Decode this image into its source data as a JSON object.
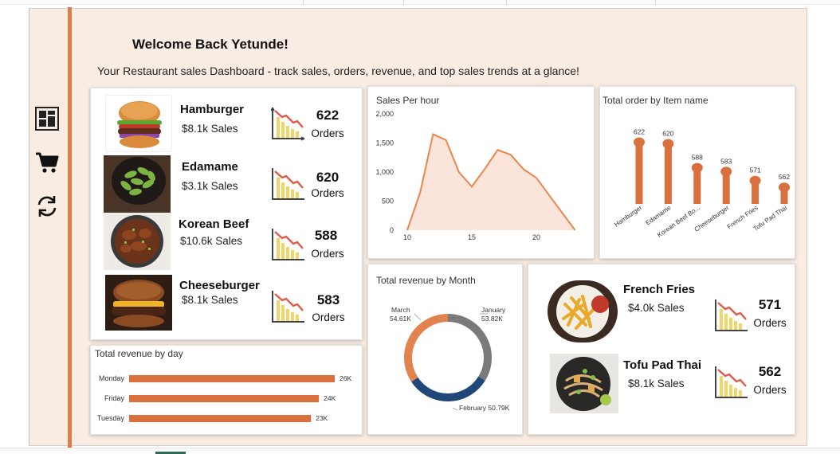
{
  "header": {
    "welcome": "Welcome Back Yetunde!",
    "subtitle": "Your Restaurant sales Dashboard - track sales, orders, revenue, and top sales trends at a glance!"
  },
  "nav": {
    "icons": [
      "dashboard-icon",
      "cart-icon",
      "refresh-icon"
    ]
  },
  "top_items": [
    {
      "name": "Hamburger",
      "sales": "$8.1k Sales",
      "count": "622",
      "orders_label": "Orders"
    },
    {
      "name": "Edamame",
      "sales": "$3.1k Sales",
      "count": "620",
      "orders_label": "Orders"
    },
    {
      "name": "Korean Beef",
      "sales": "$10.6k Sales",
      "count": "588",
      "orders_label": "Orders"
    },
    {
      "name": "Cheeseburger",
      "sales": "$8.1k Sales",
      "count": "583",
      "orders_label": "Orders"
    }
  ],
  "extra_items": [
    {
      "name": "French Fries",
      "sales": "$4.0k Sales",
      "count": "571",
      "orders_label": "Orders"
    },
    {
      "name": "Tofu Pad Thai",
      "sales": "$8.1k Sales",
      "count": "562",
      "orders_label": "Orders"
    }
  ],
  "colors": {
    "accent": "#e07b4c",
    "bar": "#d9703d",
    "area_fill": "#fbe4da",
    "area_line": "#e8864f",
    "donut_march": "#e2834f",
    "donut_january": "#7a7a7a",
    "donut_february": "#1f4778"
  },
  "chart_data": [
    {
      "id": "sales_per_hour",
      "type": "area",
      "title": "Sales Per hour",
      "x": [
        10,
        11,
        12,
        13,
        14,
        15,
        16,
        17,
        18,
        19,
        20,
        21,
        22,
        23
      ],
      "values": [
        0,
        650,
        1650,
        1550,
        1000,
        750,
        1050,
        1380,
        1300,
        1050,
        900,
        600,
        300,
        0
      ],
      "xticks": [
        "10",
        "15",
        "20"
      ],
      "yticks": [
        "0",
        "500",
        "1,000",
        "1,500",
        "2,000"
      ],
      "ylim": [
        0,
        2000
      ],
      "grid": false
    },
    {
      "id": "orders_by_item",
      "type": "bar",
      "title": "Total order by Item name",
      "categories": [
        "Hamburger",
        "Edamame",
        "Korean Beef Bo...",
        "Cheeseburger",
        "French Fries",
        "Tofu Pad Thai"
      ],
      "values": [
        622,
        620,
        588,
        583,
        571,
        562
      ],
      "labels": [
        "622",
        "620",
        "588",
        "583",
        "571",
        "562"
      ]
    },
    {
      "id": "revenue_by_month",
      "type": "pie",
      "title": "Total revenue by Month",
      "slices": [
        {
          "name": "January",
          "value": 53.82,
          "label": "January",
          "value_label": "53.82K"
        },
        {
          "name": "February",
          "value": 50.79,
          "label": "February 50.79K"
        },
        {
          "name": "March",
          "value": 54.61,
          "label": "March",
          "value_label": "54.61K"
        }
      ]
    },
    {
      "id": "revenue_by_day",
      "type": "bar",
      "title": "Total revenue by day",
      "categories": [
        "Monday",
        "Friday",
        "Tuesday"
      ],
      "values": [
        26,
        24,
        23
      ],
      "labels": [
        "26K",
        "24K",
        "23K"
      ]
    }
  ]
}
